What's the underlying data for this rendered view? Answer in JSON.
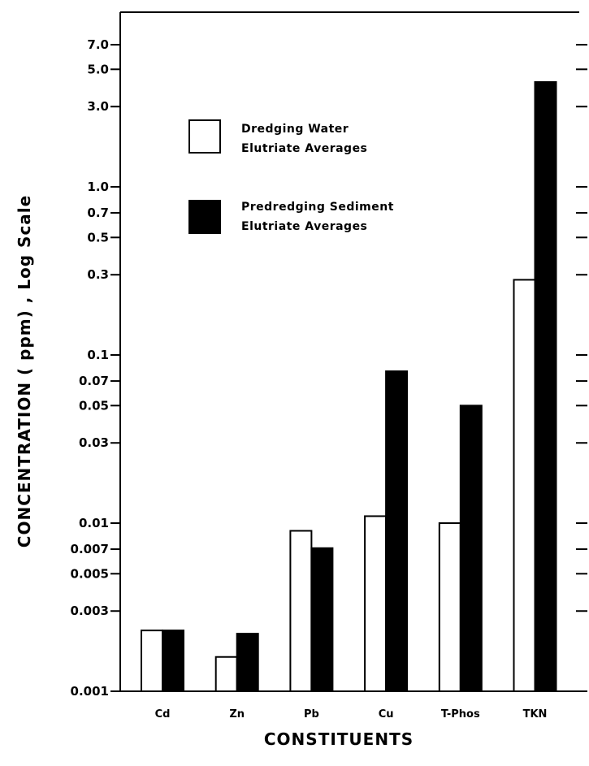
{
  "chart_data": {
    "type": "bar",
    "xlabel": "CONSTITUENTS",
    "ylabel": "CONCENTRATION ( ppm) , Log Scale",
    "y_scale": "log",
    "ylim": [
      0.001,
      10
    ],
    "grid": false,
    "legend_position": "top-left",
    "y_ticks": [
      {
        "value": 7.0,
        "label": "7.0"
      },
      {
        "value": 5.0,
        "label": "5.0"
      },
      {
        "value": 3.0,
        "label": "3.0"
      },
      {
        "value": 1.0,
        "label": "1.0"
      },
      {
        "value": 0.7,
        "label": "0.7"
      },
      {
        "value": 0.5,
        "label": "0.5"
      },
      {
        "value": 0.3,
        "label": "0.3"
      },
      {
        "value": 0.1,
        "label": "0.1"
      },
      {
        "value": 0.07,
        "label": "0.07"
      },
      {
        "value": 0.05,
        "label": "0.05"
      },
      {
        "value": 0.03,
        "label": "0.03"
      },
      {
        "value": 0.01,
        "label": "0.01"
      },
      {
        "value": 0.007,
        "label": "0.007"
      },
      {
        "value": 0.005,
        "label": "0.005"
      },
      {
        "value": 0.003,
        "label": "0.003"
      },
      {
        "value": 0.001,
        "label": "0.001"
      }
    ],
    "categories": [
      "Cd",
      "Zn",
      "Pb",
      "Cu",
      "T-Phos",
      "TKN"
    ],
    "series": [
      {
        "name": "Dredging Water\nElutriate Averages",
        "name_lines": [
          "Dredging Water",
          "Elutriate Averages"
        ],
        "color": "#ffffff",
        "values": [
          0.0023,
          0.0016,
          0.009,
          0.011,
          0.01,
          0.28
        ]
      },
      {
        "name": "Predredging Sediment\nElutriate Averages",
        "name_lines": [
          "Predredging Sediment",
          "Elutriate Averages"
        ],
        "color": "#000000",
        "values": [
          0.0023,
          0.0022,
          0.0071,
          0.08,
          0.05,
          4.2
        ]
      }
    ]
  }
}
